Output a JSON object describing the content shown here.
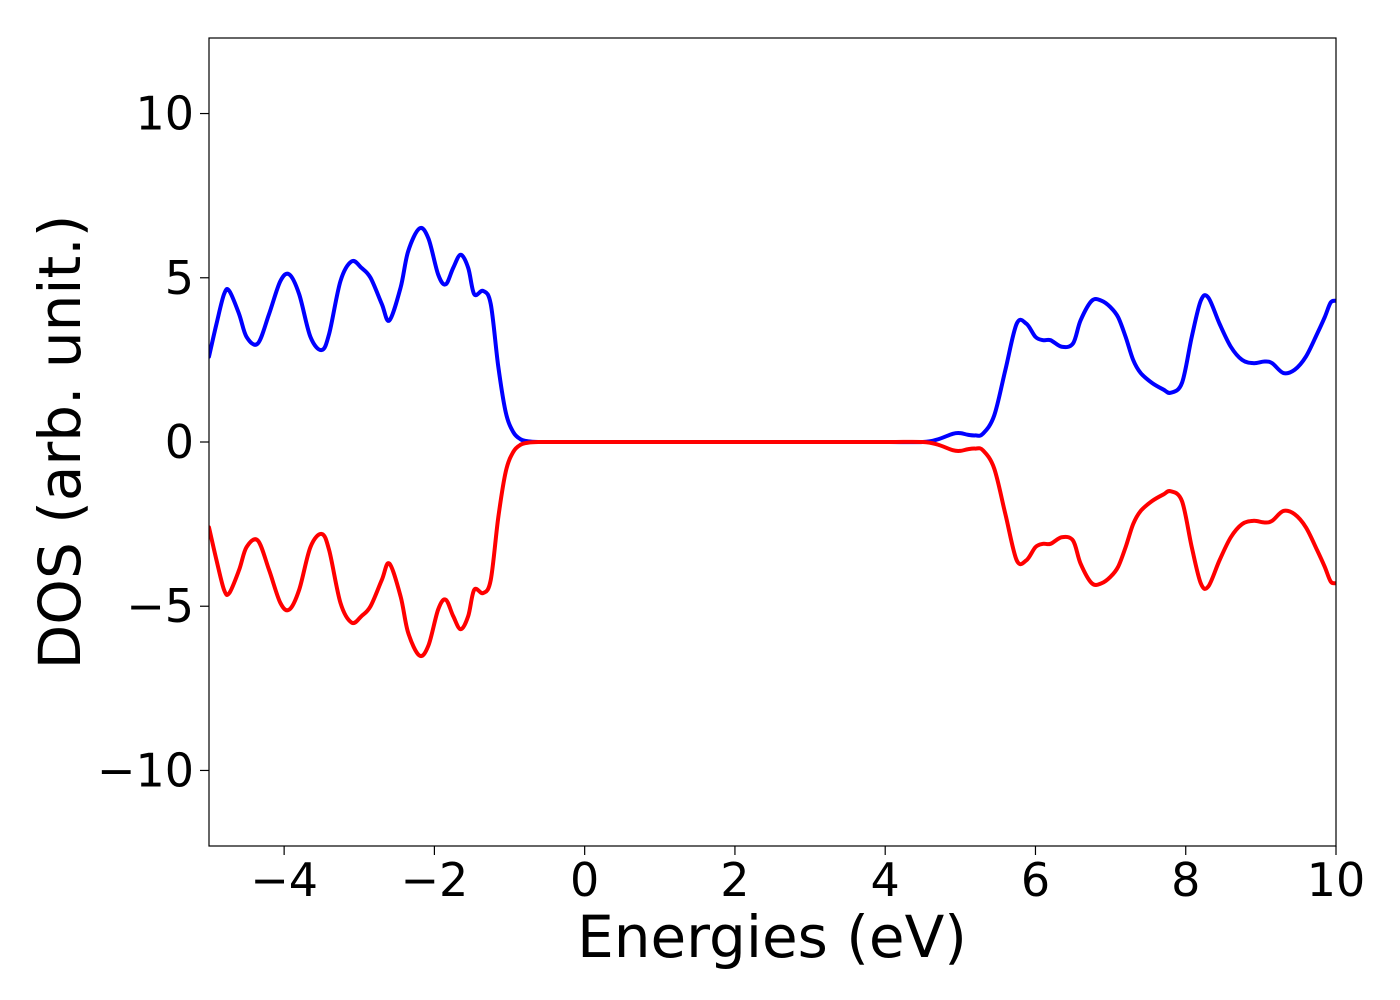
{
  "chart_data": {
    "type": "line",
    "title": "",
    "xlabel": "Energies (eV)",
    "ylabel": "DOS (arb. unit.)",
    "xlim": [
      -5,
      10
    ],
    "ylim": [
      -12.3,
      12.3
    ],
    "xticks": [
      -4,
      -2,
      0,
      2,
      4,
      6,
      8,
      10
    ],
    "xtick_labels": [
      "−4",
      "−2",
      "0",
      "2",
      "4",
      "6",
      "8",
      "10"
    ],
    "yticks": [
      -10,
      -5,
      0,
      5,
      10
    ],
    "ytick_labels": [
      "−10",
      "−5",
      "0",
      "5",
      "10"
    ],
    "grid": false,
    "legend": "none",
    "series": [
      {
        "color": "#0000ff",
        "x": [
          -5.0,
          -4.9,
          -4.8,
          -4.73,
          -4.6,
          -4.5,
          -4.35,
          -4.2,
          -4.05,
          -3.93,
          -3.8,
          -3.65,
          -3.5,
          -3.4,
          -3.25,
          -3.1,
          -2.97,
          -2.85,
          -2.7,
          -2.6,
          -2.45,
          -2.35,
          -2.2,
          -2.08,
          -1.95,
          -1.85,
          -1.75,
          -1.65,
          -1.55,
          -1.47,
          -1.35,
          -1.25,
          -1.15,
          -1.05,
          -0.95,
          -0.85,
          -0.75,
          -0.6,
          -0.5,
          0.0,
          1.0,
          2.0,
          3.0,
          4.0,
          4.5,
          4.7,
          4.9,
          5.0,
          5.1,
          5.2,
          5.3,
          5.45,
          5.6,
          5.75,
          5.88,
          6.0,
          6.1,
          6.2,
          6.35,
          6.5,
          6.6,
          6.75,
          6.88,
          7.0,
          7.1,
          7.2,
          7.3,
          7.4,
          7.55,
          7.7,
          7.8,
          7.95,
          8.08,
          8.2,
          8.3,
          8.45,
          8.6,
          8.75,
          8.9,
          9.05,
          9.15,
          9.3,
          9.45,
          9.6,
          9.75,
          9.85,
          9.93,
          10.0
        ],
        "y": [
          2.6,
          3.6,
          4.5,
          4.6,
          3.9,
          3.2,
          3.0,
          3.9,
          4.9,
          5.1,
          4.5,
          3.2,
          2.8,
          3.3,
          4.9,
          5.5,
          5.3,
          5.0,
          4.2,
          3.7,
          4.7,
          5.8,
          6.5,
          6.2,
          5.1,
          4.8,
          5.3,
          5.7,
          5.3,
          4.5,
          4.6,
          4.2,
          2.3,
          0.9,
          0.3,
          0.08,
          0.02,
          0.0,
          0.0,
          0.0,
          0.0,
          0.0,
          0.0,
          0.0,
          0.0,
          0.08,
          0.25,
          0.27,
          0.22,
          0.2,
          0.25,
          0.8,
          2.2,
          3.6,
          3.6,
          3.2,
          3.1,
          3.1,
          2.9,
          3.0,
          3.7,
          4.3,
          4.3,
          4.1,
          3.8,
          3.2,
          2.5,
          2.1,
          1.8,
          1.6,
          1.5,
          1.8,
          3.2,
          4.3,
          4.4,
          3.6,
          2.9,
          2.5,
          2.4,
          2.45,
          2.4,
          2.1,
          2.2,
          2.6,
          3.3,
          3.8,
          4.25,
          4.3
        ]
      },
      {
        "color": "#ff0000",
        "x": [
          -5.0,
          -4.9,
          -4.8,
          -4.73,
          -4.6,
          -4.5,
          -4.35,
          -4.2,
          -4.05,
          -3.93,
          -3.8,
          -3.65,
          -3.5,
          -3.4,
          -3.25,
          -3.1,
          -2.97,
          -2.85,
          -2.7,
          -2.6,
          -2.45,
          -2.35,
          -2.2,
          -2.08,
          -1.95,
          -1.85,
          -1.75,
          -1.65,
          -1.55,
          -1.47,
          -1.35,
          -1.25,
          -1.15,
          -1.05,
          -0.95,
          -0.85,
          -0.75,
          -0.6,
          -0.5,
          0.0,
          1.0,
          2.0,
          3.0,
          4.0,
          4.5,
          4.7,
          4.9,
          5.0,
          5.1,
          5.2,
          5.3,
          5.45,
          5.6,
          5.75,
          5.88,
          6.0,
          6.1,
          6.2,
          6.35,
          6.5,
          6.6,
          6.75,
          6.88,
          7.0,
          7.1,
          7.2,
          7.3,
          7.4,
          7.55,
          7.7,
          7.8,
          7.95,
          8.08,
          8.2,
          8.3,
          8.45,
          8.6,
          8.75,
          8.9,
          9.05,
          9.15,
          9.3,
          9.45,
          9.6,
          9.75,
          9.85,
          9.93,
          10.0
        ],
        "y": [
          -2.6,
          -3.6,
          -4.5,
          -4.6,
          -3.9,
          -3.2,
          -3.0,
          -3.9,
          -4.9,
          -5.1,
          -4.5,
          -3.2,
          -2.8,
          -3.3,
          -4.9,
          -5.5,
          -5.3,
          -5.0,
          -4.2,
          -3.7,
          -4.7,
          -5.8,
          -6.5,
          -6.2,
          -5.1,
          -4.8,
          -5.3,
          -5.7,
          -5.3,
          -4.5,
          -4.6,
          -4.2,
          -2.3,
          -0.9,
          -0.3,
          -0.08,
          -0.02,
          0.0,
          0.0,
          0.0,
          0.0,
          0.0,
          0.0,
          0.0,
          0.0,
          -0.08,
          -0.25,
          -0.27,
          -0.22,
          -0.2,
          -0.25,
          -0.8,
          -2.2,
          -3.6,
          -3.6,
          -3.2,
          -3.1,
          -3.1,
          -2.9,
          -3.0,
          -3.7,
          -4.3,
          -4.3,
          -4.1,
          -3.8,
          -3.2,
          -2.5,
          -2.1,
          -1.8,
          -1.6,
          -1.5,
          -1.8,
          -3.2,
          -4.3,
          -4.4,
          -3.6,
          -2.9,
          -2.5,
          -2.4,
          -2.45,
          -2.4,
          -2.1,
          -2.2,
          -2.6,
          -3.3,
          -3.8,
          -4.25,
          -4.3
        ]
      }
    ]
  }
}
